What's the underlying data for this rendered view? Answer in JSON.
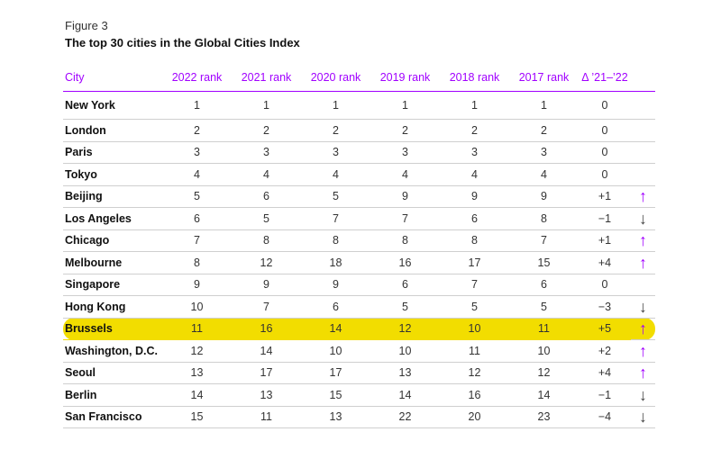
{
  "figure_label": "Figure 3",
  "title": "The top 30 cities in the Global Cities Index",
  "colors": {
    "accent": "#a100ff",
    "highlight": "#f2dd00"
  },
  "headers": [
    "City",
    "2022 rank",
    "2021 rank",
    "2020 rank",
    "2019 rank",
    "2018 rank",
    "2017 rank",
    "Δ ’21–’22"
  ],
  "rows": [
    {
      "city": "New York",
      "r2022": "1",
      "r2021": "1",
      "r2020": "1",
      "r2019": "1",
      "r2018": "1",
      "r2017": "1",
      "delta": "0",
      "trend": "none",
      "highlight": false
    },
    {
      "city": "London",
      "r2022": "2",
      "r2021": "2",
      "r2020": "2",
      "r2019": "2",
      "r2018": "2",
      "r2017": "2",
      "delta": "0",
      "trend": "none",
      "highlight": false
    },
    {
      "city": "Paris",
      "r2022": "3",
      "r2021": "3",
      "r2020": "3",
      "r2019": "3",
      "r2018": "3",
      "r2017": "3",
      "delta": "0",
      "trend": "none",
      "highlight": false
    },
    {
      "city": "Tokyo",
      "r2022": "4",
      "r2021": "4",
      "r2020": "4",
      "r2019": "4",
      "r2018": "4",
      "r2017": "4",
      "delta": "0",
      "trend": "none",
      "highlight": false
    },
    {
      "city": "Beijing",
      "r2022": "5",
      "r2021": "6",
      "r2020": "5",
      "r2019": "9",
      "r2018": "9",
      "r2017": "9",
      "delta": "+1",
      "trend": "up",
      "highlight": false
    },
    {
      "city": "Los Angeles",
      "r2022": "6",
      "r2021": "5",
      "r2020": "7",
      "r2019": "7",
      "r2018": "6",
      "r2017": "8",
      "delta": "−1",
      "trend": "down",
      "highlight": false
    },
    {
      "city": "Chicago",
      "r2022": "7",
      "r2021": "8",
      "r2020": "8",
      "r2019": "8",
      "r2018": "8",
      "r2017": "7",
      "delta": "+1",
      "trend": "up",
      "highlight": false
    },
    {
      "city": "Melbourne",
      "r2022": "8",
      "r2021": "12",
      "r2020": "18",
      "r2019": "16",
      "r2018": "17",
      "r2017": "15",
      "delta": "+4",
      "trend": "up",
      "highlight": false
    },
    {
      "city": "Singapore",
      "r2022": "9",
      "r2021": "9",
      "r2020": "9",
      "r2019": "6",
      "r2018": "7",
      "r2017": "6",
      "delta": "0",
      "trend": "none",
      "highlight": false
    },
    {
      "city": "Hong Kong",
      "r2022": "10",
      "r2021": "7",
      "r2020": "6",
      "r2019": "5",
      "r2018": "5",
      "r2017": "5",
      "delta": "−3",
      "trend": "down",
      "highlight": false
    },
    {
      "city": "Brussels",
      "r2022": "11",
      "r2021": "16",
      "r2020": "14",
      "r2019": "12",
      "r2018": "10",
      "r2017": "11",
      "delta": "+5",
      "trend": "up",
      "highlight": true
    },
    {
      "city": "Washington, D.C.",
      "r2022": "12",
      "r2021": "14",
      "r2020": "10",
      "r2019": "10",
      "r2018": "11",
      "r2017": "10",
      "delta": "+2",
      "trend": "up",
      "highlight": false
    },
    {
      "city": "Seoul",
      "r2022": "13",
      "r2021": "17",
      "r2020": "17",
      "r2019": "13",
      "r2018": "12",
      "r2017": "12",
      "delta": "+4",
      "trend": "up",
      "highlight": false
    },
    {
      "city": "Berlin",
      "r2022": "14",
      "r2021": "13",
      "r2020": "15",
      "r2019": "14",
      "r2018": "16",
      "r2017": "14",
      "delta": "−1",
      "trend": "down",
      "highlight": false
    },
    {
      "city": "San Francisco",
      "r2022": "15",
      "r2021": "11",
      "r2020": "13",
      "r2019": "22",
      "r2018": "20",
      "r2017": "23",
      "delta": "−4",
      "trend": "down",
      "highlight": false
    }
  ]
}
